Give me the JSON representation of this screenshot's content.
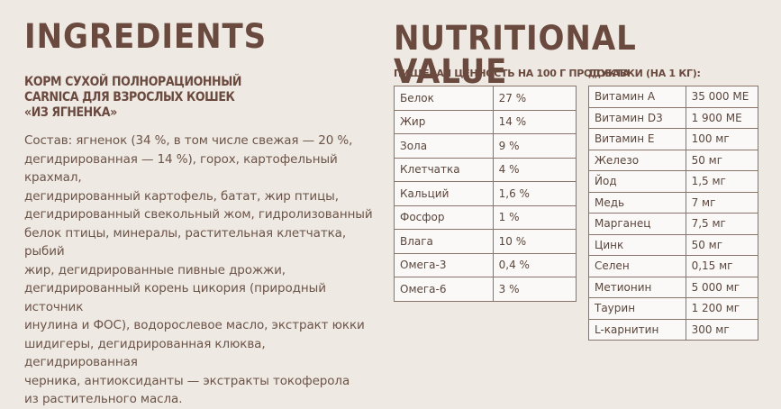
{
  "ingredients": {
    "title": "INGREDIENTS",
    "product": "КОРМ СУХОЙ ПОЛНОРАЦИОННЫЙ CARNICA ДЛЯ ВЗРОСЛЫХ КОШЕК «ИЗ ЯГНЕНКА»",
    "composition_lines": [
      "Состав: ягненок (34 %, в том числе свежая — 20 %,",
      "дегидрированная — 14 %), горох, картофельный крахмал,",
      "дегидрированный картофель, батат, жир птицы,",
      "дегидрированный свекольный жом, гидролизованный",
      "белок птицы, минералы, растительная клетчатка, рыбий",
      "жир, дегидрированные пивные дрожжи,",
      "дегидрированный корень цикория (природный источник",
      "инулина и ФОС), водорослевое масло, экстракт юкки",
      "шидигеры, дегидрированная клюква, дегидрированная",
      "черника, антиоксиданты — экстракты токоферола",
      "из растительного масла."
    ]
  },
  "nutrition": {
    "title": "NUTRITIONAL VALUE",
    "per100_heading": "ПИЩЕВАЯ ЦЕННОСТЬ НА 100 Г ПРОДУКТА",
    "additives_heading": "ДОБАВКИ (НА 1 КГ):",
    "per100_rows": [
      {
        "name": "Белок",
        "value": "27 %"
      },
      {
        "name": "Жир",
        "value": "14 %"
      },
      {
        "name": "Зола",
        "value": "9 %"
      },
      {
        "name": "Клетчатка",
        "value": "4 %"
      },
      {
        "name": "Кальций",
        "value": "1,6 %"
      },
      {
        "name": "Фосфор",
        "value": "1 %"
      },
      {
        "name": "Влага",
        "value": "10 %"
      },
      {
        "name": "Омега-3",
        "value": "0,4 %"
      },
      {
        "name": "Омега-6",
        "value": "3 %"
      }
    ],
    "additives_rows": [
      {
        "name": "Витамин А",
        "value": "35 000 МЕ"
      },
      {
        "name": "Витамин D3",
        "value": "1 900 МЕ"
      },
      {
        "name": "Витамин Е",
        "value": "100 мг"
      },
      {
        "name": "Железо",
        "value": "50 мг"
      },
      {
        "name": "Йод",
        "value": "1,5 мг"
      },
      {
        "name": "Медь",
        "value": "7 мг"
      },
      {
        "name": "Марганец",
        "value": "7,5 мг"
      },
      {
        "name": "Цинк",
        "value": "50 мг"
      },
      {
        "name": "Селен",
        "value": "0,15 мг"
      },
      {
        "name": "Метионин",
        "value": "5 000 мг"
      },
      {
        "name": "Таурин",
        "value": "1 200 мг"
      },
      {
        "name": "L-карнитин",
        "value": "300 мг"
      }
    ]
  }
}
